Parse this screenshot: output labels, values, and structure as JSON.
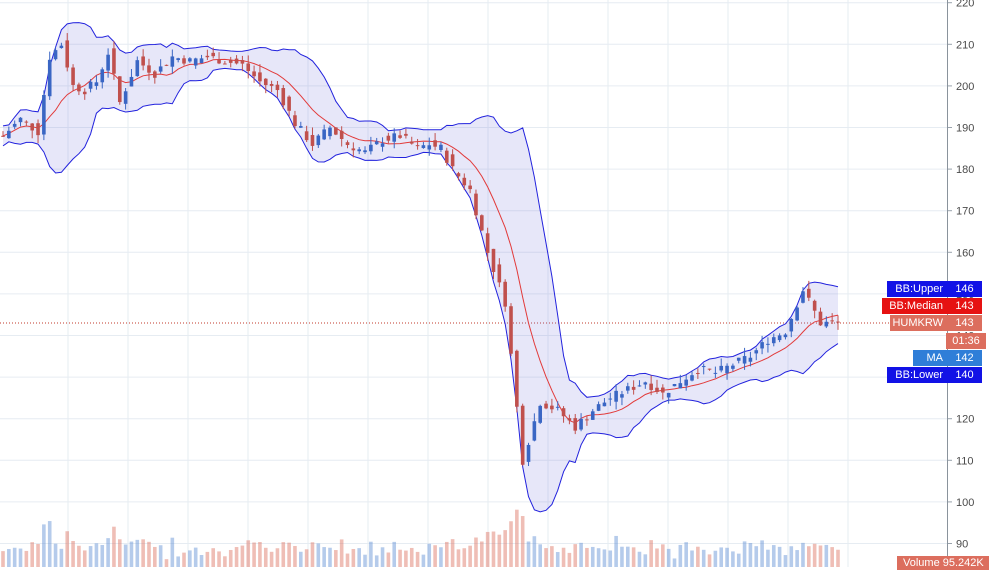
{
  "chart_data": {
    "type": "candlestick",
    "symbol": "HUMKRW",
    "y_ticks": [
      90,
      100,
      110,
      120,
      130,
      140,
      150,
      160,
      170,
      180,
      190,
      200,
      210,
      220
    ],
    "ylim": [
      87.5,
      221
    ],
    "grid": true,
    "price_series": {
      "x_index": [
        0,
        3,
        6,
        8,
        10,
        12,
        14,
        16,
        18,
        20,
        23,
        26,
        29,
        32,
        35,
        38,
        41,
        44,
        47,
        50,
        53,
        56,
        59,
        62,
        65,
        68,
        71,
        73,
        75,
        77,
        80,
        83,
        86,
        89,
        92,
        95,
        98,
        101,
        104,
        107,
        110,
        113,
        116,
        119,
        122,
        125,
        128,
        131,
        134,
        137,
        140,
        143
      ],
      "close": [
        188,
        192,
        189,
        207,
        210,
        200,
        199,
        201,
        208,
        196,
        206,
        203,
        207,
        206,
        207,
        206,
        205,
        201,
        199,
        191,
        186,
        190,
        186,
        184,
        187,
        188,
        185,
        186,
        185,
        180,
        175,
        160,
        148,
        110,
        124,
        122,
        118,
        122,
        125,
        127,
        129,
        126,
        129,
        132,
        131,
        133,
        135,
        139,
        141,
        151,
        143,
        143
      ]
    },
    "indicators": [
      {
        "name": "BB:Upper",
        "value": 146,
        "color": "#1212e6"
      },
      {
        "name": "BB:Median",
        "value": 143,
        "color": "#e61212"
      },
      {
        "name": "HUMKRW",
        "value": 143,
        "color": "#dc6e5e"
      },
      {
        "name": "MA",
        "value": 142,
        "color": "#2f7ed8"
      },
      {
        "name": "BB:Lower",
        "value": 140,
        "color": "#1212e6"
      }
    ],
    "countdown": "01:36",
    "volume_label": "Volume",
    "volume_value": "95.242K"
  }
}
